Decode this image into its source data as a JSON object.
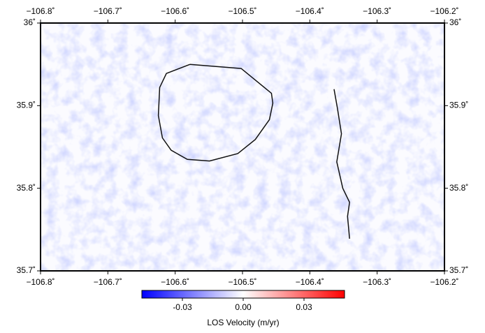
{
  "chart_data": {
    "type": "map",
    "xlim": [
      -106.8,
      -106.2
    ],
    "ylim": [
      35.7,
      36
    ],
    "xticks": [
      {
        "value": -106.8,
        "label": "−106.8˚"
      },
      {
        "value": -106.7,
        "label": "−106.7˚"
      },
      {
        "value": -106.6,
        "label": "−106.6˚"
      },
      {
        "value": -106.5,
        "label": "−106.5˚"
      },
      {
        "value": -106.4,
        "label": "−106.4˚"
      },
      {
        "value": -106.3,
        "label": "−106.3˚"
      },
      {
        "value": -106.2,
        "label": "−106.2˚"
      }
    ],
    "yticks": [
      {
        "value": 35.7,
        "label": "35.7˚"
      },
      {
        "value": 35.8,
        "label": "35.8˚"
      },
      {
        "value": 35.9,
        "label": "35.9˚"
      },
      {
        "value": 36,
        "label": "36˚"
      }
    ],
    "lines": [
      {
        "color": "#111111",
        "x": [
          -106.578,
          -106.502,
          -106.457,
          -106.455,
          -106.46,
          -106.481,
          -106.507,
          -106.549,
          -106.582,
          -106.606,
          -106.619,
          -106.625,
          -106.623,
          -106.613,
          -106.578
        ],
        "y": [
          35.95,
          35.945,
          35.915,
          35.903,
          35.883,
          35.859,
          35.842,
          35.833,
          35.835,
          35.846,
          35.861,
          35.888,
          35.922,
          35.939,
          35.95
        ]
      },
      {
        "color": "#111111",
        "x": [
          -106.364,
          -106.359,
          -106.353,
          -106.36,
          -106.351,
          -106.341,
          -106.344,
          -106.341
        ],
        "y": [
          35.92,
          35.897,
          35.866,
          35.832,
          35.8,
          35.783,
          35.766,
          35.739
        ]
      }
    ],
    "colorbar": {
      "label": "LOS Velocity (m/yr)",
      "clim": [
        -0.05,
        0.05
      ],
      "ticks": [
        -0.03,
        {
          "value": 0,
          "label": "0.00"
        },
        0.03
      ],
      "colormap": [
        "#0000ff",
        "#ffffff",
        "#ff0000"
      ]
    }
  }
}
